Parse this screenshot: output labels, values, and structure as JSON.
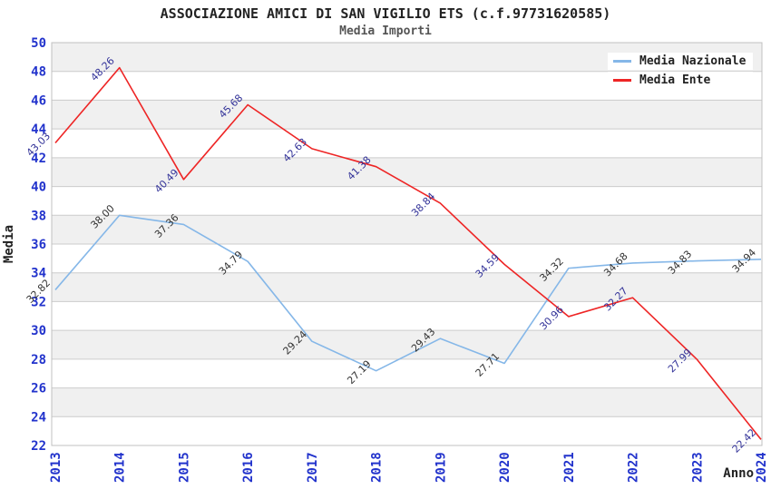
{
  "title": "ASSOCIAZIONE AMICI DI SAN VIGILIO ETS (c.f.97731620585)",
  "subtitle": "Media Importi",
  "legend": {
    "items": [
      {
        "label": "Media Nazionale",
        "color": "#85b7e8"
      },
      {
        "label": "Media Ente",
        "color": "#ee2525"
      }
    ]
  },
  "chart_data": {
    "type": "line",
    "x": [
      2013,
      2014,
      2015,
      2016,
      2017,
      2018,
      2019,
      2020,
      2021,
      2022,
      2023,
      2024
    ],
    "series": [
      {
        "name": "Media Nazionale",
        "color": "#85b7e8",
        "label_color": "#333333",
        "values": [
          32.82,
          38.0,
          37.36,
          34.79,
          29.24,
          27.19,
          29.43,
          27.71,
          34.32,
          34.68,
          34.83,
          34.94
        ]
      },
      {
        "name": "Media Ente",
        "color": "#ee2525",
        "label_color": "#333399",
        "values": [
          43.03,
          48.26,
          40.49,
          45.68,
          42.63,
          41.38,
          38.84,
          34.59,
          30.96,
          32.27,
          27.99,
          22.42
        ]
      }
    ],
    "xlabel": "Anno",
    "ylabel": "Media",
    "ylim": [
      22,
      50
    ],
    "ytick_step": 2,
    "grid": true,
    "band_colors": [
      "#f0f0f0",
      "#ffffff"
    ],
    "gridline_color": "#cccccc",
    "border_color": "#c0c0c0",
    "axis_tick_color": "#2233cc",
    "legend_position": "top-right"
  }
}
